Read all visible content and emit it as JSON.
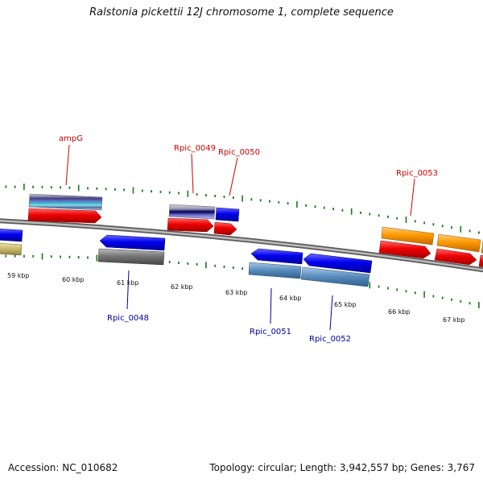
{
  "title": "Ralstonia pickettii 12J chromosome 1, complete sequence",
  "footer": {
    "accession": "Accession: NC_010682",
    "stats": "Topology: circular; Length: 3,942,557 bp; Genes: 3,767"
  },
  "colors": {
    "label_forward": "#cc0000",
    "label_reverse": "#000099",
    "tick": "#1a7a1a",
    "backbone": "#7f7f7f",
    "red_gene": "#ee0000",
    "blue_gene": "#0000ee",
    "orange_gene": "#ff9900",
    "steel_gene": "#5b8fbf",
    "gray_gene": "#777777",
    "olive_gene": "#c8b86a"
  },
  "kbp_labels": [
    "59 kbp",
    "60 kbp",
    "61 kbp",
    "62 kbp",
    "63 kbp",
    "64 kbp",
    "65 kbp",
    "66 kbp",
    "67 kbp"
  ],
  "genes_forward": [
    {
      "name": "ampG",
      "color": "#ee0000"
    },
    {
      "name": "Rpic_0049",
      "color": "#ee0000"
    },
    {
      "name": "Rpic_0050",
      "color": "#ee0000"
    },
    {
      "name": "Rpic_0053",
      "color": "#ee0000"
    }
  ],
  "genes_reverse": [
    {
      "name": "Rpic_0048",
      "color": "#0000ee"
    },
    {
      "name": "Rpic_0051",
      "color": "#0000ee"
    },
    {
      "name": "Rpic_0052",
      "color": "#0000ee"
    }
  ]
}
